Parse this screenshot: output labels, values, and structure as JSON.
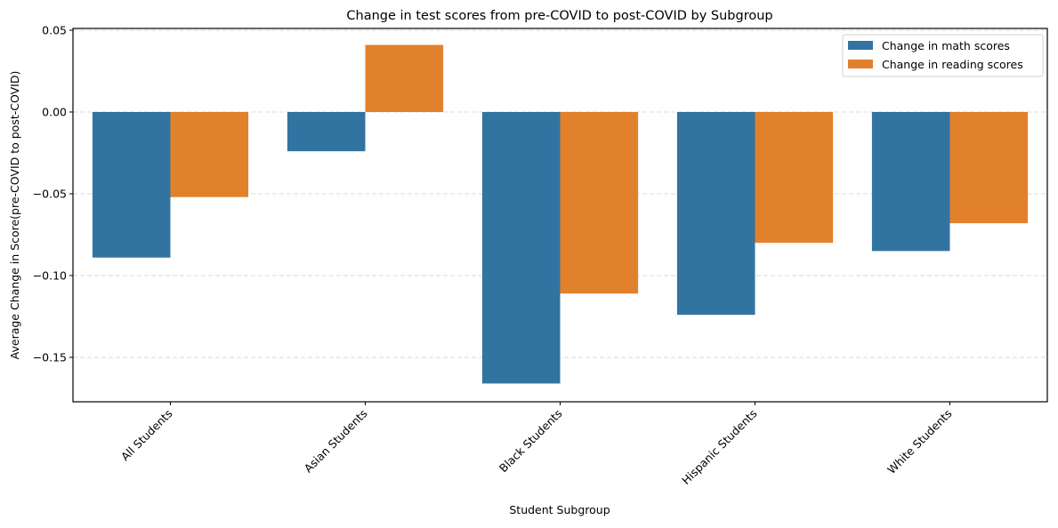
{
  "chart_data": {
    "type": "bar",
    "title": "Change in test scores from pre-COVID to post-COVID by Subgroup",
    "xlabel": "Student Subgroup",
    "ylabel": "Average Change in Score(pre-COVID to post-COVID)",
    "categories": [
      "All Students",
      "Asian Students",
      "Black Students",
      "Hispanic Students",
      "White Students"
    ],
    "series": [
      {
        "name": "Change in math scores",
        "color": "#3274a1",
        "values": [
          -0.089,
          -0.024,
          -0.166,
          -0.124,
          -0.085
        ]
      },
      {
        "name": "Change in reading scores",
        "color": "#e1812c",
        "values": [
          -0.052,
          0.041,
          -0.111,
          -0.08,
          -0.068
        ]
      }
    ],
    "ylim": [
      -0.178,
      0.052
    ],
    "yticks": [
      0.05,
      0.0,
      -0.05,
      -0.1,
      -0.15
    ],
    "ytick_labels": [
      "0.05",
      "0.00",
      "−0.05",
      "−0.10",
      "−0.15"
    ],
    "grid": "y dashed",
    "legend_position": "top-right"
  }
}
